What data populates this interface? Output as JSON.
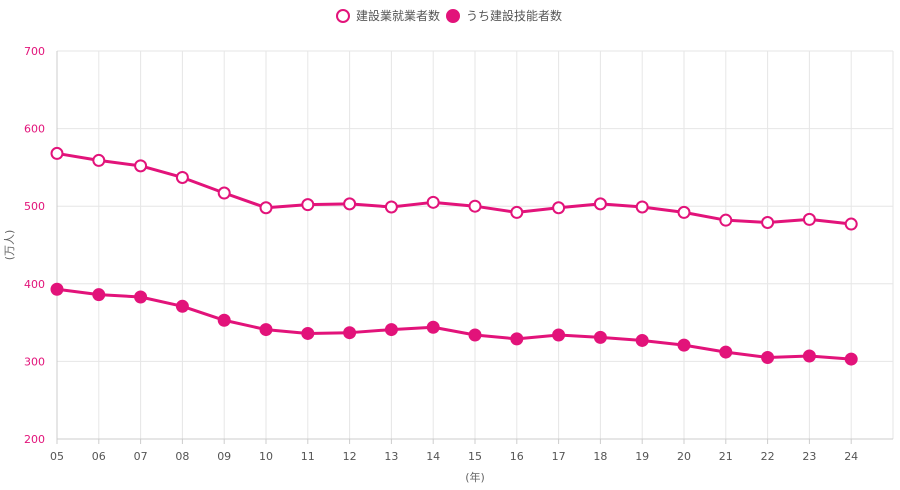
{
  "chart_data": {
    "type": "line",
    "title": "",
    "xlabel": "(年)",
    "ylabel": "(万人)",
    "ylim": [
      200,
      700
    ],
    "yticks": [
      200,
      300,
      400,
      500,
      600,
      700
    ],
    "categories": [
      "05",
      "06",
      "07",
      "08",
      "09",
      "10",
      "11",
      "12",
      "13",
      "14",
      "15",
      "16",
      "17",
      "18",
      "19",
      "20",
      "21",
      "22",
      "23",
      "24"
    ],
    "grid": true,
    "legend_position": "top-center",
    "series": [
      {
        "name": "建設業就業者数",
        "marker": "hollow-circle",
        "values": [
          568,
          559,
          552,
          537,
          517,
          498,
          502,
          503,
          499,
          505,
          500,
          492,
          498,
          503,
          499,
          492,
          482,
          479,
          483,
          477
        ]
      },
      {
        "name": "うち建設技能者数",
        "marker": "filled-circle",
        "values": [
          393,
          386,
          383,
          371,
          353,
          341,
          336,
          337,
          341,
          344,
          334,
          329,
          334,
          331,
          327,
          321,
          312,
          305,
          307,
          303
        ]
      }
    ],
    "colors": {
      "line": "#e2137a",
      "grid": "#e6e6e6",
      "axis": "#cccccc"
    }
  }
}
